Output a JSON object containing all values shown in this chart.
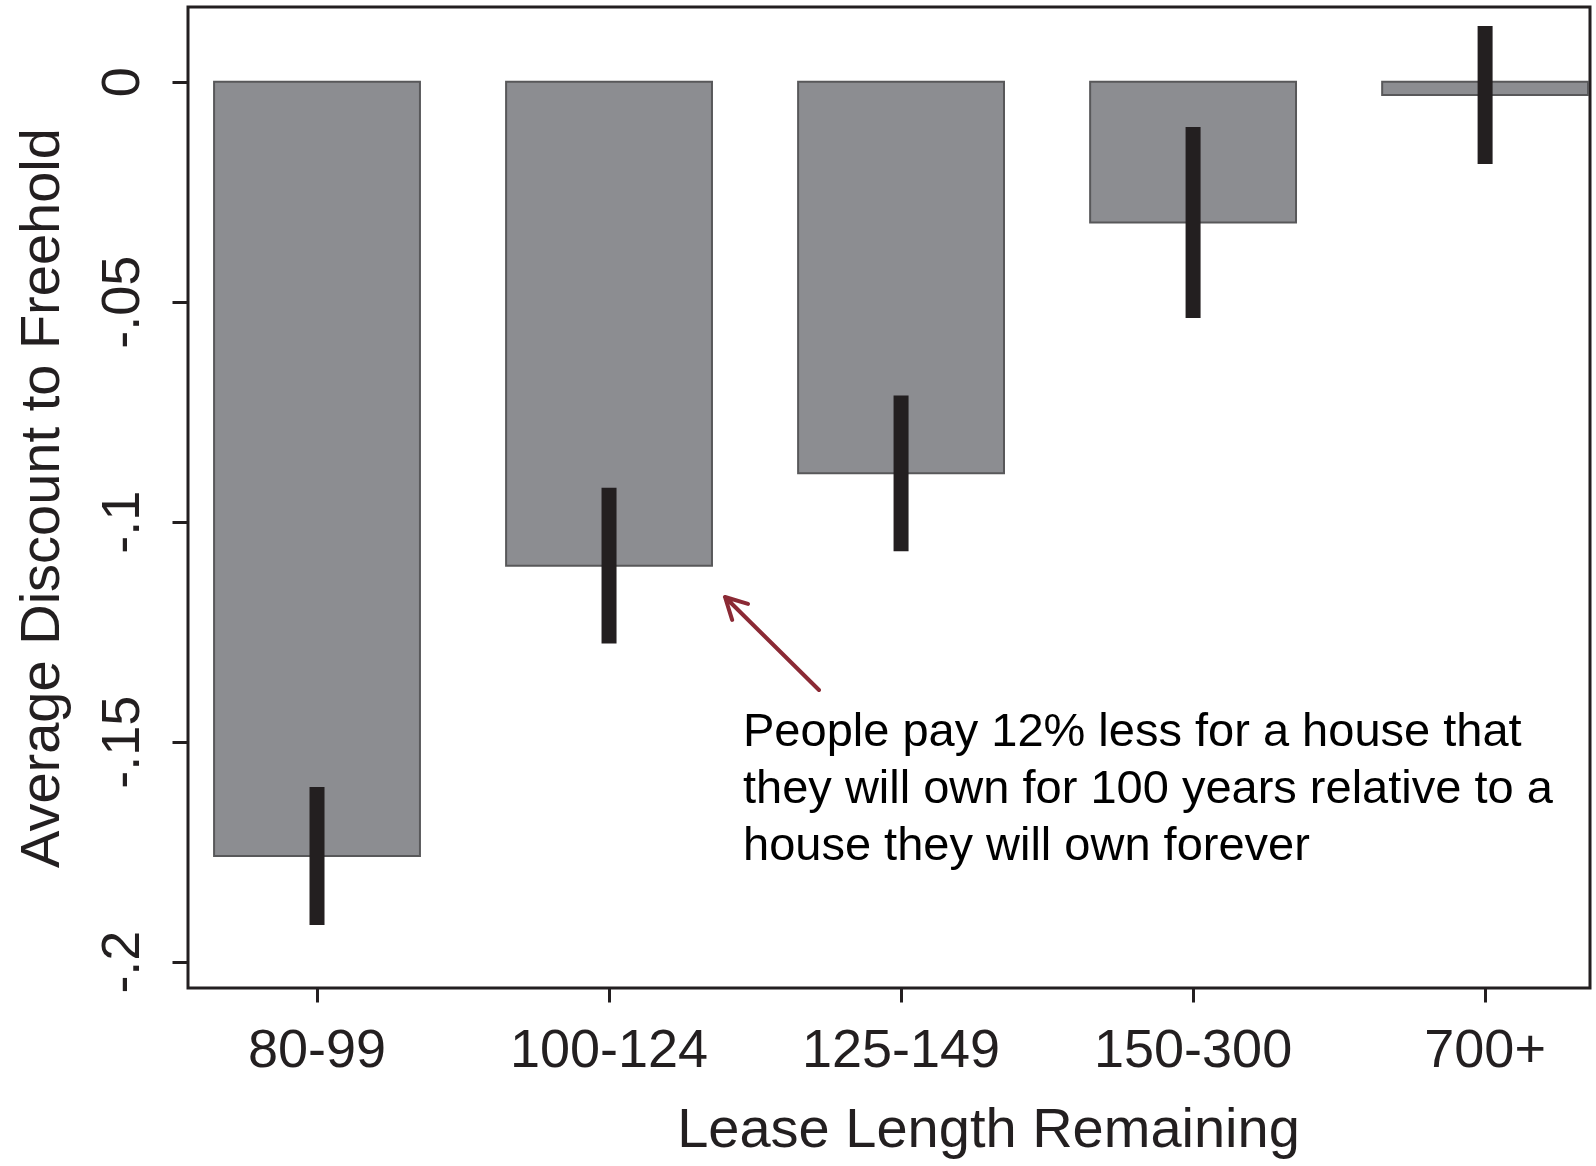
{
  "chart_data": {
    "type": "bar",
    "xlabel": "Lease Length Remaining",
    "ylabel": "Average Discount to Freehold",
    "categories": [
      "80-99",
      "100-124",
      "125-149",
      "150-300",
      "700+"
    ],
    "values": [
      -0.176,
      -0.11,
      -0.089,
      -0.032,
      -0.003
    ],
    "errors": [
      0.014,
      0.016,
      0.016,
      0.02,
      0.014
    ],
    "color": "#8c8d91",
    "ylim": [
      -0.206,
      0.017
    ],
    "yticks": [
      {
        "value": -0.2,
        "label": "-.2"
      },
      {
        "value": -0.15,
        "label": "-.15"
      },
      {
        "value": -0.1,
        "label": "-.1"
      },
      {
        "value": -0.05,
        "label": "-.05"
      },
      0
    ],
    "annotations": [
      "People pay 12% less for a house that they will own for 100 years relative to a house they will own forever"
    ]
  }
}
